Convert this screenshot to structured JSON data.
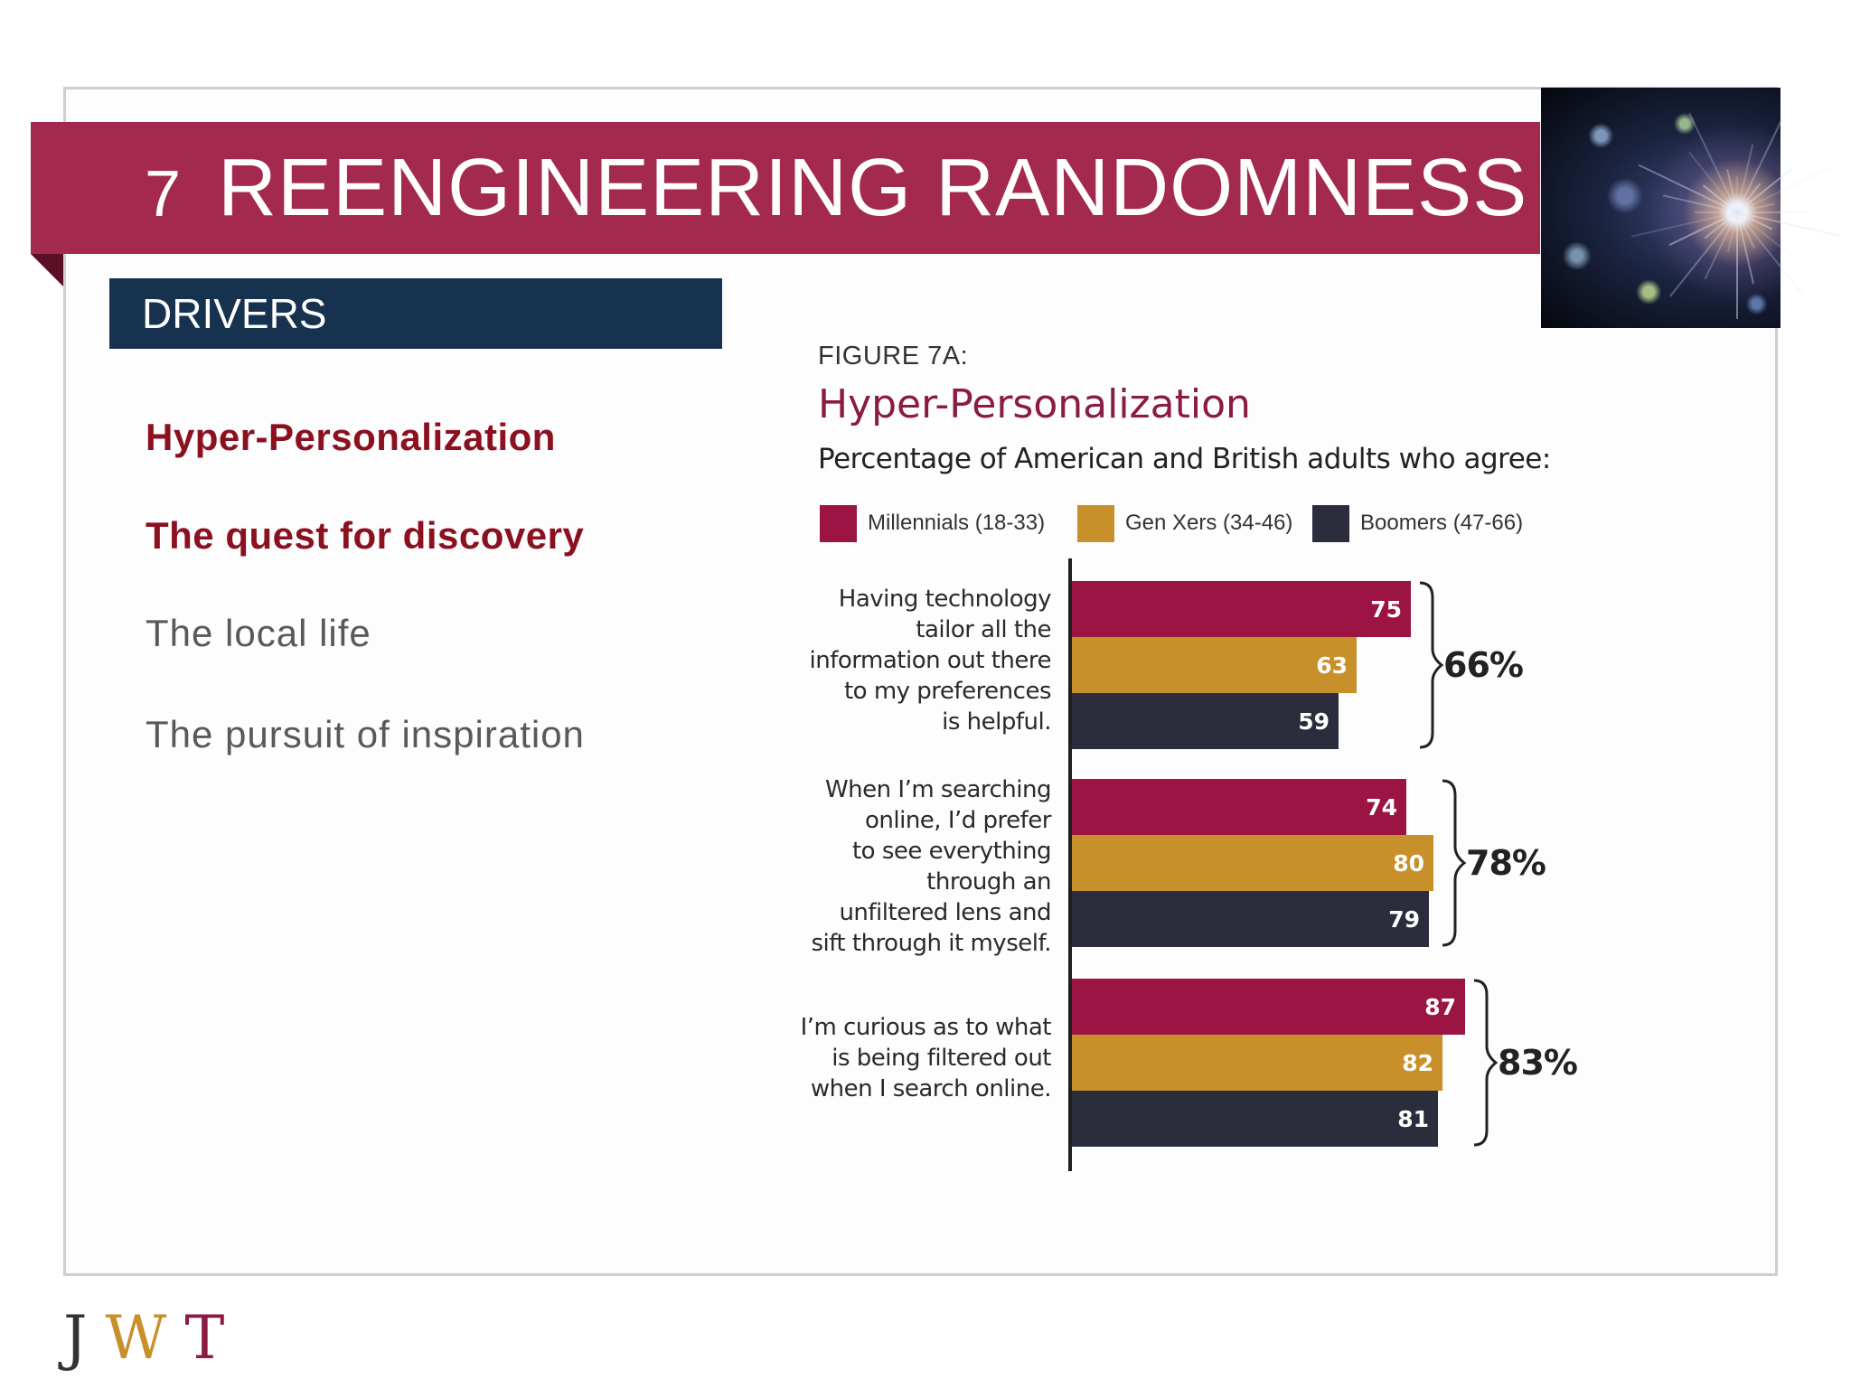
{
  "header": {
    "number": "7",
    "title": "REENGINEERING RANDOMNESS"
  },
  "drivers": {
    "label": "DRIVERS",
    "items": [
      {
        "label": "Hyper-Personalization",
        "active": true
      },
      {
        "label": "The quest for discovery",
        "active": true
      },
      {
        "label": "The local life",
        "active": false
      },
      {
        "label": "The pursuit of inspiration",
        "active": false
      }
    ]
  },
  "figure": {
    "label": "FIGURE 7A:",
    "title": "Hyper-Personalization",
    "subtitle": "Percentage of American and British adults who agree:"
  },
  "colors": {
    "millennials": "#9b1444",
    "genx": "#c8902a",
    "boomers": "#2b2d3c",
    "banner": "#a4294f",
    "drivers_bar": "#17324f"
  },
  "chart_data": {
    "type": "bar",
    "orientation": "horizontal",
    "xlim": [
      0,
      100
    ],
    "legend": "top",
    "series": [
      {
        "name": "Millennials (18-33)",
        "values": [
          75,
          74,
          87
        ]
      },
      {
        "name": "Gen Xers (34-46)",
        "values": [
          63,
          80,
          82
        ]
      },
      {
        "name": "Boomers (47-66)",
        "values": [
          59,
          79,
          81
        ]
      }
    ],
    "categories": [
      "Having technology\ntailor all the\ninformation out there\nto my preferences\nis helpful.",
      "When I’m searching\nonline, I’d prefer\nto see everything\nthrough an\nunfiltered lens and\nsift through it myself.",
      "I’m curious as to what\nis being filtered out\nwhen I search online."
    ],
    "group_totals": [
      "66%",
      "78%",
      "83%"
    ]
  },
  "footer": {
    "logo": "JWT"
  }
}
